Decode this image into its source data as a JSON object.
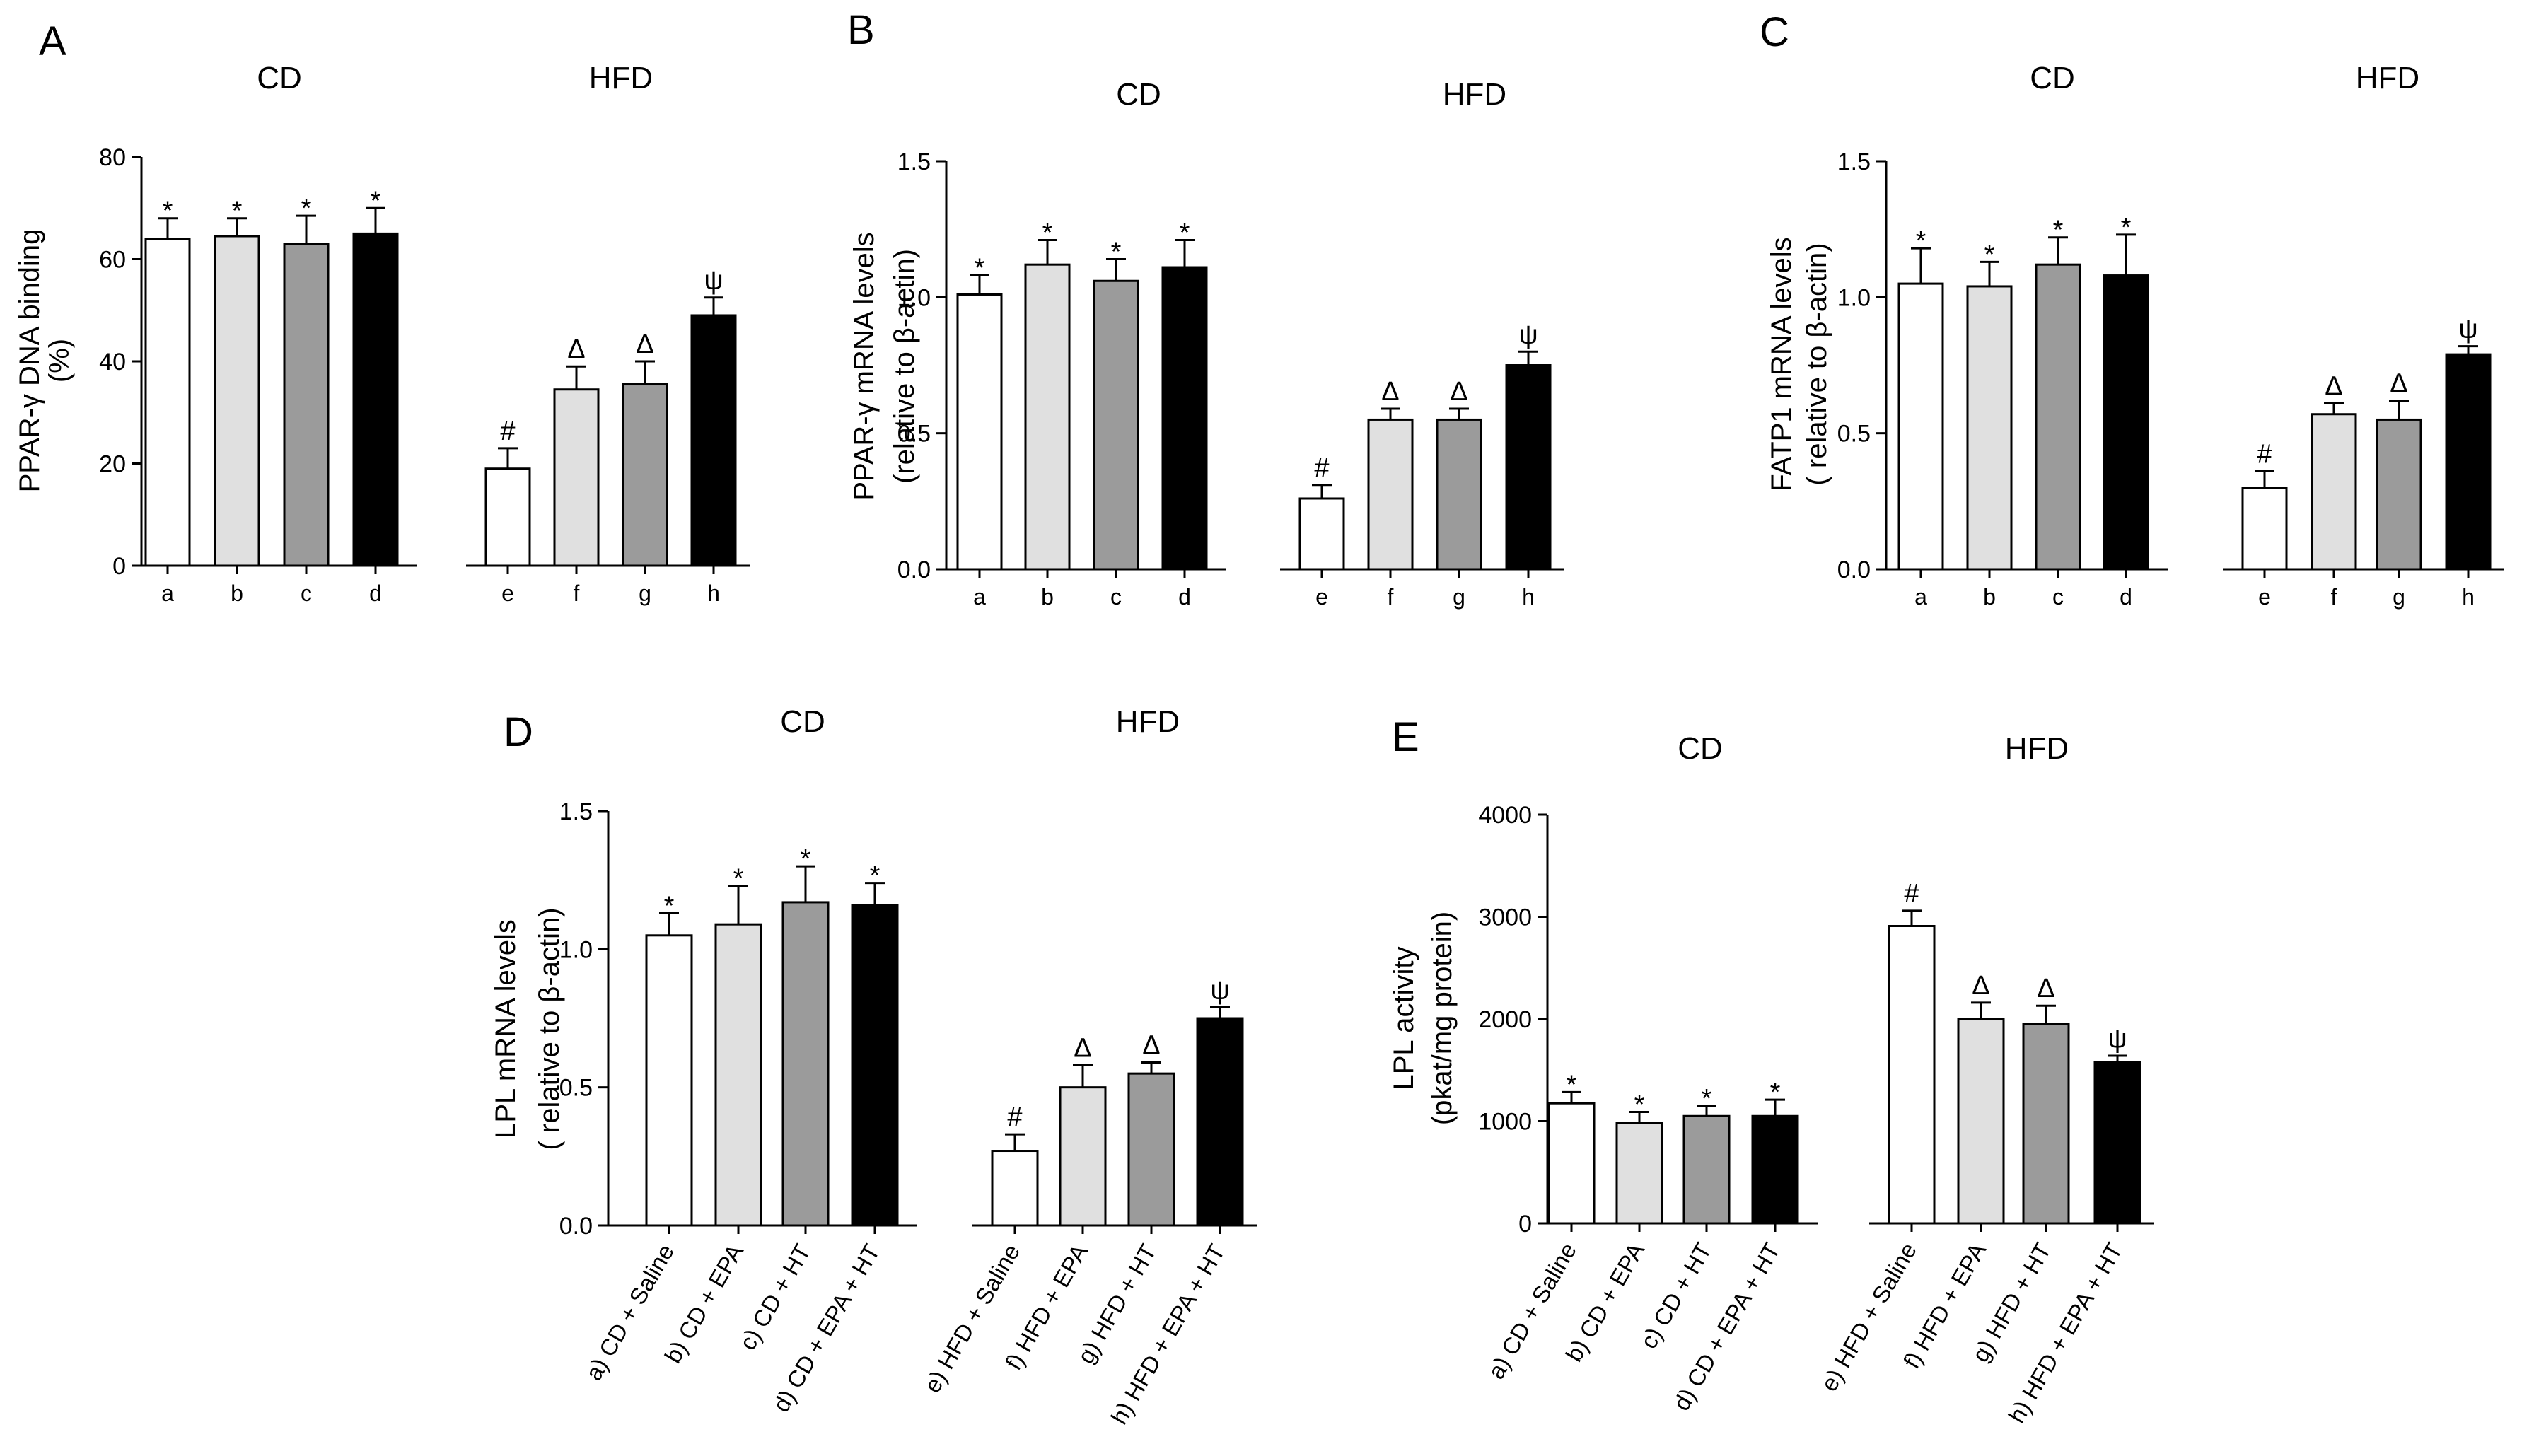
{
  "figure_labels": {
    "group_left": "CD",
    "group_right": "HFD"
  },
  "chart_data": [
    {
      "panel": "A",
      "type": "bar",
      "ylabel_lines": [
        "PPAR-γ DNA binding",
        "(%)"
      ],
      "ylim": [
        0,
        80
      ],
      "yticks": [
        "0",
        "20",
        "40",
        "60",
        "80"
      ],
      "categories": [
        "a",
        "b",
        "c",
        "d",
        "e",
        "f",
        "g",
        "h"
      ],
      "values": [
        64,
        64.5,
        63,
        65,
        19,
        34.5,
        35.5,
        49
      ],
      "errors": [
        4,
        3.5,
        5.5,
        5,
        4,
        4.5,
        4.5,
        3.5
      ],
      "marks": [
        "*",
        "*",
        "*",
        "*",
        "#",
        "Δ",
        "Δ",
        "ψ"
      ],
      "colors": [
        "#ffffff",
        "#e0e0e0",
        "#9b9b9b",
        "#000000",
        "#ffffff",
        "#e0e0e0",
        "#9b9b9b",
        "#000000"
      ]
    },
    {
      "panel": "B",
      "type": "bar",
      "ylabel_lines": [
        "PPAR-γ mRNA levels",
        "(relative to β-actin)"
      ],
      "ylim": [
        0,
        1.5
      ],
      "yticks": [
        "0.0",
        "0.5",
        "1.0",
        "1.5"
      ],
      "categories": [
        "a",
        "b",
        "c",
        "d",
        "e",
        "f",
        "g",
        "h"
      ],
      "values": [
        1.01,
        1.12,
        1.06,
        1.11,
        0.26,
        0.55,
        0.55,
        0.75
      ],
      "errors": [
        0.07,
        0.09,
        0.08,
        0.1,
        0.05,
        0.04,
        0.04,
        0.05
      ],
      "marks": [
        "*",
        "*",
        "*",
        "*",
        "#",
        "Δ",
        "Δ",
        "ψ"
      ],
      "colors": [
        "#ffffff",
        "#e0e0e0",
        "#9b9b9b",
        "#000000",
        "#ffffff",
        "#e0e0e0",
        "#9b9b9b",
        "#000000"
      ]
    },
    {
      "panel": "C",
      "type": "bar",
      "ylabel_lines": [
        "FATP1 mRNA levels",
        "(  relative to β-actin)"
      ],
      "ylim": [
        0,
        1.5
      ],
      "yticks": [
        "0.0",
        "0.5",
        "1.0",
        "1.5"
      ],
      "categories": [
        "a",
        "b",
        "c",
        "d",
        "e",
        "f",
        "g",
        "h"
      ],
      "values": [
        1.05,
        1.04,
        1.12,
        1.08,
        0.3,
        0.57,
        0.55,
        0.79
      ],
      "errors": [
        0.13,
        0.09,
        0.1,
        0.15,
        0.06,
        0.04,
        0.07,
        0.03
      ],
      "marks": [
        "*",
        "*",
        "*",
        "*",
        "#",
        "Δ",
        "Δ",
        "ψ"
      ],
      "colors": [
        "#ffffff",
        "#e0e0e0",
        "#9b9b9b",
        "#000000",
        "#ffffff",
        "#e0e0e0",
        "#9b9b9b",
        "#000000"
      ]
    },
    {
      "panel": "D",
      "type": "bar",
      "ylabel_lines": [
        "LPL mRNA levels",
        "(  relative to β-actin)"
      ],
      "ylim": [
        0,
        1.5
      ],
      "yticks": [
        "0.0",
        "0.5",
        "1.0",
        "1.5"
      ],
      "categories": [
        "a) CD + Saline",
        "b) CD + EPA",
        "c) CD + HT",
        "d) CD + EPA + HT",
        "e) HFD + Saline",
        "f) HFD + EPA",
        "g) HFD + HT",
        "h) HFD + EPA + HT"
      ],
      "values": [
        1.05,
        1.09,
        1.17,
        1.16,
        0.27,
        0.5,
        0.55,
        0.75
      ],
      "errors": [
        0.08,
        0.14,
        0.13,
        0.08,
        0.06,
        0.08,
        0.04,
        0.04
      ],
      "marks": [
        "*",
        "*",
        "*",
        "*",
        "#",
        "Δ",
        "Δ",
        "ψ"
      ],
      "colors": [
        "#ffffff",
        "#e0e0e0",
        "#9b9b9b",
        "#000000",
        "#ffffff",
        "#e0e0e0",
        "#9b9b9b",
        "#000000"
      ]
    },
    {
      "panel": "E",
      "type": "bar",
      "ylabel_lines": [
        "LPL activity",
        "(pkat/mg protein)"
      ],
      "ylim": [
        0,
        4000
      ],
      "yticks": [
        "0",
        "1000",
        "2000",
        "3000",
        "4000"
      ],
      "categories": [
        "a) CD + Saline",
        "b) CD + EPA",
        "c) CD + HT",
        "d) CD + EPA + HT",
        "e) HFD + Saline",
        "f) HFD + EPA",
        "g) HFD + HT",
        "h) HFD + EPA + HT"
      ],
      "values": [
        1175,
        980,
        1050,
        1050,
        2910,
        2000,
        1950,
        1580
      ],
      "errors": [
        110,
        110,
        100,
        160,
        150,
        160,
        180,
        60
      ],
      "marks": [
        "*",
        "*",
        "*",
        "*",
        "#",
        "Δ",
        "Δ",
        "ψ"
      ],
      "colors": [
        "#ffffff",
        "#e0e0e0",
        "#9b9b9b",
        "#000000",
        "#ffffff",
        "#e0e0e0",
        "#9b9b9b",
        "#000000"
      ]
    }
  ]
}
